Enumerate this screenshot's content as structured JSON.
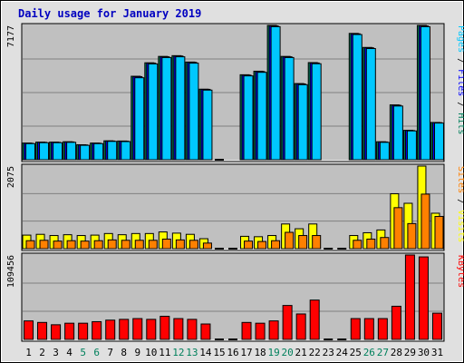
{
  "chart_data": {
    "type": "bar",
    "title": "Daily usage for January 2019",
    "days": [
      "1",
      "2",
      "3",
      "4",
      "5",
      "6",
      "7",
      "8",
      "9",
      "10",
      "11",
      "12",
      "13",
      "14",
      "15",
      "16",
      "17",
      "18",
      "19",
      "20",
      "21",
      "22",
      "23",
      "24",
      "25",
      "26",
      "27",
      "28",
      "29",
      "30",
      "31"
    ],
    "weekend_days": [
      "5",
      "6",
      "12",
      "13",
      "19",
      "20",
      "26",
      "27"
    ],
    "panels": [
      {
        "id": "hits-pages-files",
        "max_label": "7177",
        "ymax": 7177,
        "series": [
          {
            "name": "Hits",
            "color": "#00805c",
            "values": [
              890,
              940,
              940,
              960,
              800,
              890,
              1010,
              1000,
              4460,
              5180,
              5520,
              5560,
              5220,
              3770,
              0,
              0,
              4540,
              4730,
              7177,
              5520,
              4070,
              5190,
              0,
              0,
              6750,
              6000,
              960,
              2930,
              1570,
              7177,
              1990
            ]
          },
          {
            "name": "Files",
            "color": "#0000ff",
            "values": [
              880,
              930,
              930,
              950,
              790,
              880,
              1000,
              990,
              4440,
              5160,
              5500,
              5540,
              5200,
              3760,
              0,
              0,
              4520,
              4710,
              7150,
              5500,
              4050,
              5170,
              0,
              0,
              6730,
              5980,
              950,
              2910,
              1560,
              7150,
              1980
            ]
          },
          {
            "name": "Pages",
            "color": "#00c8ff",
            "values": [
              860,
              910,
              910,
              930,
              770,
              860,
              980,
              970,
              4380,
              5120,
              5460,
              5500,
              5160,
              3720,
              0,
              0,
              4480,
              4670,
              7110,
              5460,
              4010,
              5130,
              0,
              0,
              6690,
              5940,
              930,
              2870,
              1540,
              7110,
              1960
            ]
          }
        ],
        "legend": [
          "Pages",
          "/",
          "Files",
          "/",
          "Hits"
        ]
      },
      {
        "id": "visits-sites",
        "max_label": "2075",
        "ymax": 2075,
        "series": [
          {
            "name": "Visits",
            "color": "#ffff00",
            "values": [
              340,
              360,
              330,
              350,
              330,
              340,
              380,
              350,
              380,
              380,
              420,
              390,
              360,
              250,
              0,
              0,
              310,
              300,
              330,
              620,
              500,
              620,
              0,
              0,
              330,
              400,
              470,
              1380,
              1140,
              2075,
              890
            ]
          },
          {
            "name": "Sites",
            "color": "#ff8000",
            "values": [
              200,
              210,
              190,
              200,
              190,
              200,
              220,
              210,
              210,
              210,
              240,
              220,
              210,
              140,
              0,
              0,
              190,
              180,
              200,
              410,
              330,
              330,
              0,
              0,
              210,
              240,
              280,
              1030,
              630,
              1370,
              810
            ]
          }
        ],
        "legend": [
          "Sites",
          "/",
          "Visits"
        ]
      },
      {
        "id": "kbytes",
        "max_label": "109456",
        "ymax": 109456,
        "series": [
          {
            "name": "KBytes",
            "color": "#ff0000",
            "values": [
              24000,
              22000,
              19000,
              21000,
              21000,
              23000,
              25000,
              26000,
              27000,
              26000,
              30000,
              27000,
              26000,
              20000,
              0,
              0,
              22000,
              21000,
              24000,
              44000,
              33000,
              51000,
              0,
              0,
              27000,
              27000,
              27000,
              43000,
              109456,
              107000,
              34000
            ]
          }
        ],
        "legend": [
          "KBytes"
        ]
      }
    ],
    "colors": {
      "panel_bg": "#c0c0c0",
      "outer_bg": "#e0e0e0",
      "title_color": "#0000c0",
      "grid": "#808080",
      "weekend_label": "#00805c",
      "day_label": "#000000",
      "zero_marker": "#000000"
    }
  }
}
